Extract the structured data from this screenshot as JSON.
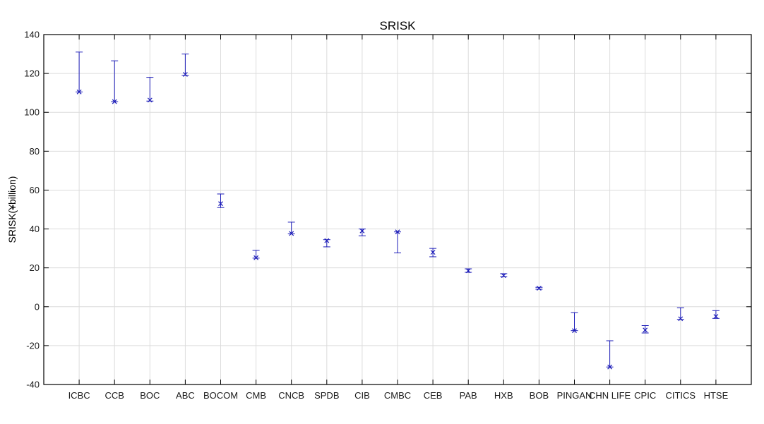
{
  "chart_data": {
    "type": "scatter",
    "title": "SRISK",
    "xlabel": "",
    "ylabel": "SRISK(¥billion)",
    "ylim": [
      -40,
      140
    ],
    "yticks": [
      -40,
      -20,
      0,
      20,
      40,
      60,
      80,
      100,
      120,
      140
    ],
    "grid": true,
    "legend": "none",
    "categories": [
      "ICBC",
      "CCB",
      "BOC",
      "ABC",
      "BOCOM",
      "CMB",
      "CNCB",
      "SPDB",
      "CIB",
      "CMBC",
      "CEB",
      "PAB",
      "HXB",
      "BOB",
      "PINGAN",
      "CHN LIFE",
      "CPIC",
      "CITICS",
      "HTSE"
    ],
    "values": [
      110.5,
      105.5,
      106.3,
      119.5,
      53,
      25.2,
      37.7,
      34,
      39,
      38.5,
      28,
      18.5,
      16,
      9.5,
      -12.3,
      -31,
      -12,
      -6.2,
      -5
    ],
    "error_low": [
      110.5,
      105.5,
      105.8,
      119,
      51,
      25,
      37.5,
      30.8,
      36.5,
      27.7,
      25.7,
      17.7,
      15.5,
      9,
      -12.3,
      -31,
      -13.5,
      -6.5,
      -6
    ],
    "error_high": [
      131,
      126.5,
      118,
      130,
      58,
      29,
      43.5,
      34.5,
      40,
      38.5,
      30,
      19.5,
      17,
      10,
      -3,
      -17.5,
      -9.7,
      -0.5,
      -2
    ],
    "colors": {
      "marker": "#1c1cb8",
      "frame": "#000000",
      "grid": "#dcdcdc"
    }
  }
}
